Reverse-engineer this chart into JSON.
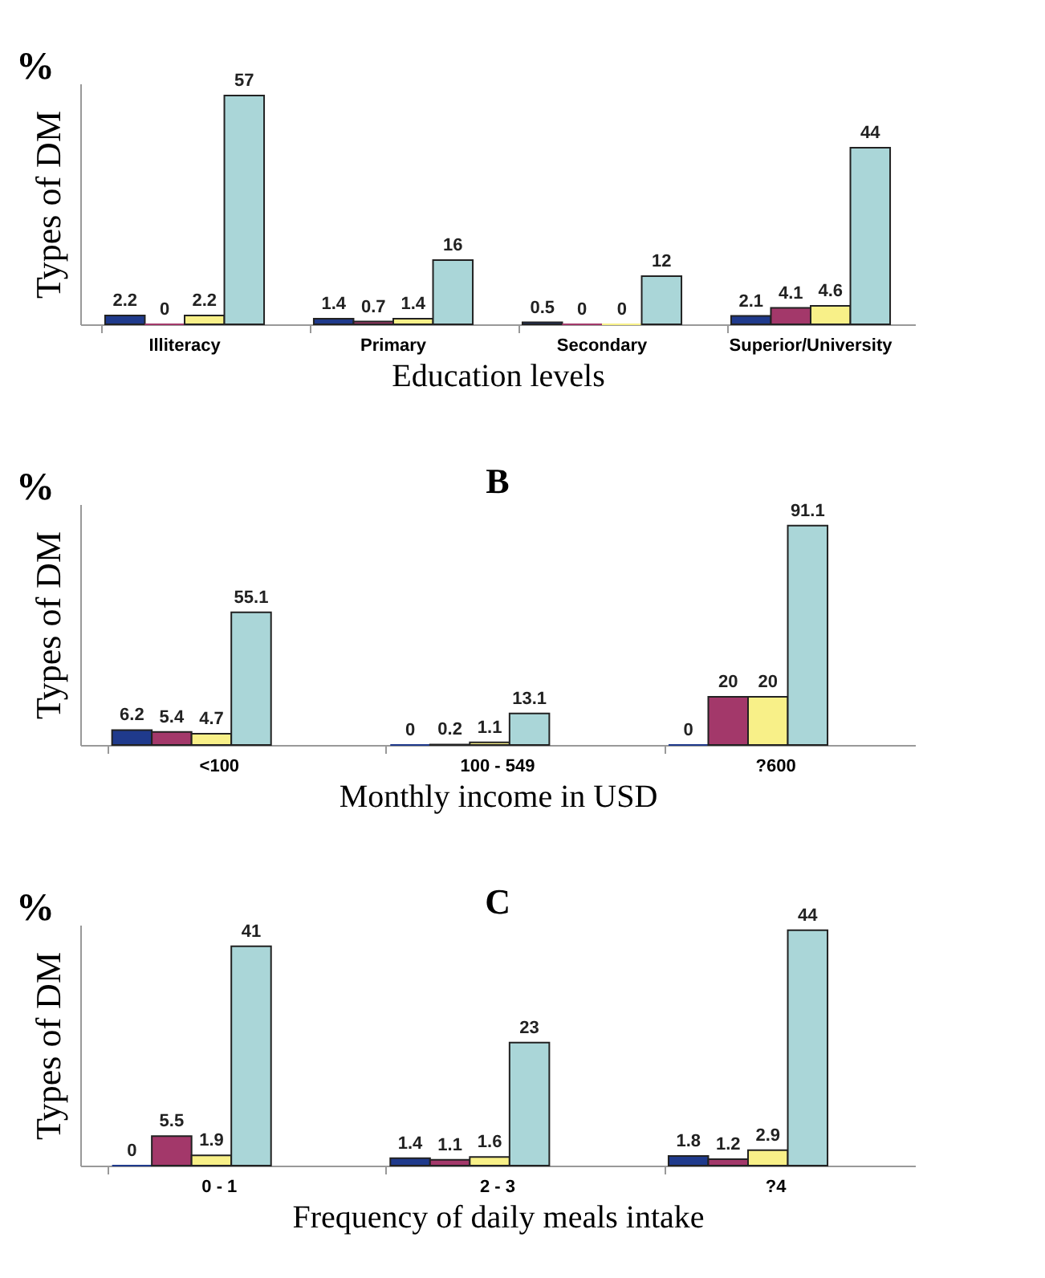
{
  "chart_data": [
    {
      "type": "bar",
      "xlabel": "Education levels",
      "ylabel": "Types of DM",
      "annotations": [
        "%"
      ],
      "categories": [
        "Illiteracy",
        "Primary",
        "Secondary",
        "Superior/University"
      ],
      "data_labels": true,
      "grid": false,
      "legend": false,
      "series": [
        {
          "color": "#1f3a8c",
          "values": [
            2.2,
            1.4,
            0.5,
            2.1
          ]
        },
        {
          "color": "#a3386a",
          "values": [
            0,
            0.7,
            0,
            4.1
          ]
        },
        {
          "color": "#f8f088",
          "values": [
            2.2,
            1.4,
            0,
            4.6
          ]
        },
        {
          "color": "#aad6d8",
          "values": [
            57,
            16,
            12,
            44
          ]
        }
      ]
    },
    {
      "type": "bar",
      "title": "B",
      "xlabel": "Monthly income in USD",
      "ylabel": "Types of DM",
      "annotations": [
        "%"
      ],
      "categories": [
        "<100",
        "100 - 549",
        "?600"
      ],
      "data_labels": true,
      "grid": false,
      "legend": false,
      "series": [
        {
          "color": "#1f3a8c",
          "values": [
            6.2,
            0,
            0
          ]
        },
        {
          "color": "#a3386a",
          "values": [
            5.4,
            0.2,
            20
          ]
        },
        {
          "color": "#f8f088",
          "values": [
            4.7,
            1.1,
            20
          ]
        },
        {
          "color": "#aad6d8",
          "values": [
            55.1,
            13.1,
            91.1
          ]
        }
      ]
    },
    {
      "type": "bar",
      "title": "C",
      "xlabel": "Frequency of daily meals intake",
      "ylabel": "Types of DM",
      "annotations": [
        "%"
      ],
      "categories": [
        "0 - 1",
        "2 - 3",
        "?4"
      ],
      "data_labels": true,
      "grid": false,
      "legend": false,
      "series": [
        {
          "color": "#1f3a8c",
          "values": [
            0,
            1.4,
            1.8
          ]
        },
        {
          "color": "#a3386a",
          "values": [
            5.5,
            1.1,
            1.2
          ]
        },
        {
          "color": "#f8f088",
          "values": [
            1.9,
            1.6,
            2.9
          ]
        },
        {
          "color": "#aad6d8",
          "values": [
            41,
            23,
            44
          ]
        }
      ]
    }
  ]
}
